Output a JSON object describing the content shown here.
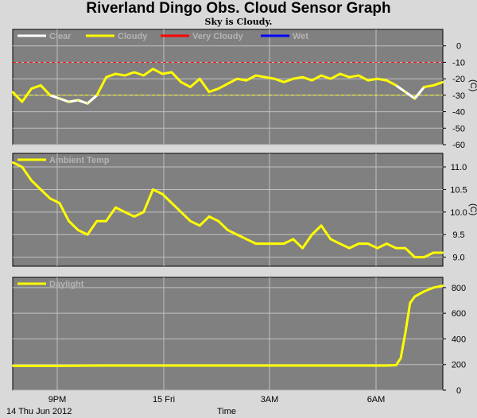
{
  "title": "Riverland Dingo Obs. Cloud Sensor Graph",
  "subtitle": "Sky is Cloudy.",
  "x_axis": {
    "ticks": [
      "9PM",
      "15 Fri",
      "3AM",
      "6AM"
    ],
    "date_label": "14 Thu Jun 2012",
    "label": "Time"
  },
  "colors": {
    "background": "#d9d9d9",
    "plot_bg": "#808080",
    "grid": "#c0c0c0",
    "clear": "#ffffff",
    "cloudy": "#ffff00",
    "very_cloudy": "#ff0000",
    "wet": "#0000ff"
  },
  "chart_data": [
    {
      "type": "line",
      "name": "sky-temp",
      "legend": [
        "Clear",
        "Cloudy",
        "Very Cloudy",
        "Wet"
      ],
      "unit": "(C)",
      "ylim": [
        -60,
        10
      ],
      "yticks": [
        "0",
        "-10",
        "-20",
        "-30",
        "-40",
        "-50",
        "-60"
      ],
      "threshold_lines": [
        -10,
        -30
      ],
      "xlim": [
        0,
        46
      ],
      "x": [
        0,
        1,
        2,
        3,
        4,
        5,
        6,
        7,
        8,
        9,
        10,
        11,
        12,
        13,
        14,
        15,
        16,
        17,
        18,
        19,
        20,
        21,
        22,
        23,
        24,
        25,
        26,
        27,
        28,
        29,
        30,
        31,
        32,
        33,
        34,
        35,
        36,
        37,
        38,
        39,
        40,
        41,
        42,
        43,
        44,
        45,
        46
      ],
      "values": [
        -28,
        -34,
        -26,
        -24,
        -30,
        -32,
        -34,
        -33,
        -35,
        -30,
        -19,
        -17,
        -18,
        -16,
        -18,
        -14,
        -17,
        -16,
        -22,
        -25,
        -20,
        -28,
        -26,
        -23,
        -20,
        -21,
        -18,
        -19,
        -20,
        -22,
        -20,
        -19,
        -21,
        -18,
        -20,
        -17,
        -19,
        -18,
        -21,
        -20,
        -21,
        -24,
        -28,
        -32,
        -25,
        -24,
        -22
      ],
      "clear_ranges": [
        [
          4,
          9
        ],
        [
          41,
          44
        ]
      ]
    },
    {
      "type": "line",
      "name": "ambient-temp",
      "legend": [
        "Ambient Temp"
      ],
      "unit": "(C)",
      "ylim": [
        8.8,
        11.3
      ],
      "yticks": [
        "11.0",
        "10.5",
        "10.0",
        "9.5",
        "9.0"
      ],
      "xlim": [
        0,
        46
      ],
      "x": [
        0,
        1,
        2,
        3,
        4,
        5,
        6,
        7,
        8,
        9,
        10,
        11,
        12,
        13,
        14,
        15,
        16,
        17,
        18,
        19,
        20,
        21,
        22,
        23,
        24,
        25,
        26,
        27,
        28,
        29,
        30,
        31,
        32,
        33,
        34,
        35,
        36,
        37,
        38,
        39,
        40,
        41,
        42,
        43,
        44,
        45,
        46
      ],
      "values": [
        11.1,
        11.0,
        10.7,
        10.5,
        10.3,
        10.2,
        9.8,
        9.6,
        9.5,
        9.8,
        9.8,
        10.1,
        10.0,
        9.9,
        10.0,
        10.5,
        10.4,
        10.2,
        10.0,
        9.8,
        9.7,
        9.9,
        9.8,
        9.6,
        9.5,
        9.4,
        9.3,
        9.3,
        9.3,
        9.3,
        9.4,
        9.2,
        9.5,
        9.7,
        9.4,
        9.3,
        9.2,
        9.3,
        9.3,
        9.2,
        9.3,
        9.2,
        9.2,
        9.0,
        9.0,
        9.1,
        9.1
      ]
    },
    {
      "type": "line",
      "name": "daylight",
      "legend": [
        "Daylight"
      ],
      "unit": "",
      "ylim": [
        0,
        880
      ],
      "yticks": [
        "800",
        "600",
        "400",
        "200",
        "0"
      ],
      "xlim": [
        0,
        46
      ],
      "x": [
        0,
        5,
        10,
        15,
        20,
        25,
        30,
        35,
        38,
        39,
        40,
        41,
        41.5,
        42,
        42.5,
        43,
        44,
        45,
        46
      ],
      "values": [
        190,
        190,
        192,
        192,
        192,
        192,
        192,
        192,
        192,
        192,
        192,
        195,
        250,
        450,
        680,
        730,
        770,
        800,
        815
      ]
    }
  ]
}
